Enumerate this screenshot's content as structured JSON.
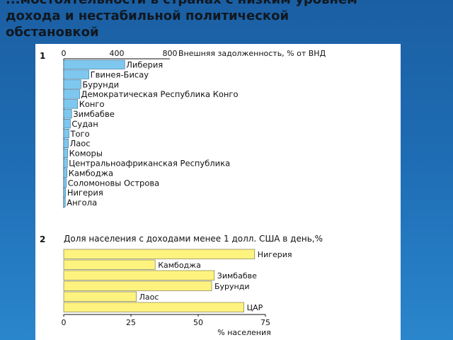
{
  "slide": {
    "title": "...мостоятельности в странах с низким уровнем дохода и нестабильной политической обстановкой",
    "title_lines": [
      "...мостоятельности в странах с низким уровнем",
      "дохода и нестабильной политической",
      "обстановкой"
    ]
  },
  "chart_data": [
    {
      "type": "bar",
      "orientation": "horizontal",
      "panel_label": "1",
      "title": "Внешняя задолженность, % от ВНД",
      "x_tick_labels": [
        "0",
        "400",
        "800"
      ],
      "xlim": [
        0,
        800
      ],
      "bar_color": "#7ec8ef",
      "categories": [
        "Либерия",
        "Гвинея-Бисау",
        "Бурунди",
        "Демократическая Республика Конго",
        "Конго",
        "Зимбабве",
        "Судан",
        "Того",
        "Лаос",
        "Коморы",
        "Центральноафриканская Республика",
        "Камбоджа",
        "Соломоновы Острова",
        "Нигерия",
        "Ангола"
      ],
      "values": [
        460,
        190,
        130,
        120,
        105,
        60,
        50,
        40,
        35,
        30,
        28,
        25,
        20,
        15,
        12
      ]
    },
    {
      "type": "bar",
      "orientation": "horizontal",
      "panel_label": "2",
      "title": "Доля населения с доходами менее 1 долл. США в день,%",
      "xlabel": "% населения",
      "x_tick_labels": [
        "0",
        "25",
        "50",
        "75"
      ],
      "xlim": [
        0,
        75
      ],
      "bar_color": "#fff37f",
      "categories": [
        "Нигерия",
        "Камбоджа",
        "Зимбабве",
        "Бурунди",
        "Лаос",
        "ЦАР"
      ],
      "values": [
        71,
        34,
        56,
        55,
        27,
        67
      ]
    }
  ]
}
